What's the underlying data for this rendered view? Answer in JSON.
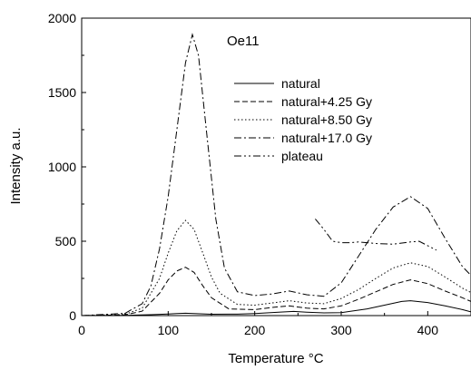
{
  "chart_data": {
    "type": "line",
    "title": "",
    "annotation": "Oe11",
    "xlabel": "Temperature °C",
    "ylabel": "Intensity a.u.",
    "xlim": [
      0,
      450
    ],
    "ylim": [
      0,
      2000
    ],
    "xticks": [
      0,
      100,
      200,
      300,
      400
    ],
    "yticks": [
      0,
      500,
      1000,
      1500,
      2000
    ],
    "grid": false,
    "legend_position": "top-right",
    "series": [
      {
        "name": "natural",
        "dash": "solid",
        "x": [
          0,
          50,
          80,
          100,
          110,
          120,
          130,
          150,
          180,
          200,
          230,
          245,
          260,
          280,
          300,
          330,
          350,
          370,
          380,
          400,
          420,
          440,
          450
        ],
        "y": [
          0,
          2,
          6,
          11,
          14,
          16,
          14,
          9,
          10,
          14,
          24,
          28,
          23,
          18,
          20,
          45,
          70,
          95,
          100,
          88,
          65,
          40,
          25
        ]
      },
      {
        "name": "natural+4.25 Gy",
        "dash": "dashed",
        "x": [
          0,
          50,
          70,
          90,
          100,
          110,
          120,
          130,
          140,
          150,
          170,
          200,
          220,
          240,
          260,
          280,
          300,
          320,
          340,
          360,
          380,
          400,
          420,
          440,
          450
        ],
        "y": [
          0,
          5,
          30,
          150,
          240,
          300,
          325,
          290,
          200,
          120,
          45,
          40,
          55,
          65,
          50,
          45,
          65,
          110,
          160,
          210,
          240,
          215,
          165,
          120,
          95
        ]
      },
      {
        "name": "natural+8.50 Gy",
        "dash": "dotted",
        "x": [
          0,
          50,
          70,
          90,
          100,
          110,
          120,
          130,
          140,
          150,
          160,
          180,
          200,
          220,
          240,
          260,
          280,
          300,
          320,
          340,
          360,
          380,
          400,
          420,
          440,
          450
        ],
        "y": [
          0,
          8,
          50,
          250,
          420,
          570,
          640,
          580,
          420,
          260,
          150,
          75,
          70,
          85,
          100,
          85,
          80,
          115,
          175,
          250,
          320,
          355,
          330,
          260,
          185,
          155
        ]
      },
      {
        "name": "natural+17.0 Gy",
        "dash": "dashdot",
        "x": [
          0,
          50,
          70,
          80,
          90,
          100,
          110,
          120,
          128,
          135,
          145,
          155,
          165,
          180,
          200,
          220,
          240,
          260,
          280,
          300,
          320,
          340,
          360,
          380,
          400,
          420,
          440,
          450
        ],
        "y": [
          0,
          15,
          80,
          200,
          450,
          800,
          1250,
          1700,
          1890,
          1750,
          1200,
          650,
          320,
          160,
          135,
          145,
          165,
          140,
          130,
          220,
          400,
          580,
          730,
          800,
          720,
          520,
          330,
          270
        ]
      },
      {
        "name": "plateau",
        "dash": "dashdotdot",
        "x": [
          270,
          280,
          290,
          300,
          310,
          320,
          340,
          360,
          380,
          390,
          400,
          410
        ],
        "y": [
          650,
          580,
          500,
          490,
          490,
          495,
          485,
          480,
          495,
          500,
          470,
          440
        ]
      }
    ]
  }
}
